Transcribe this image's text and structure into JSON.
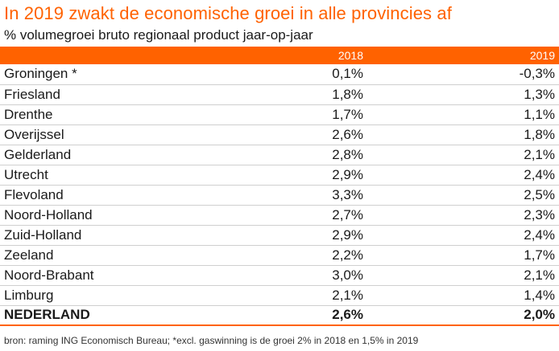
{
  "chart_data": {
    "type": "table",
    "title": "In 2019 zwakt de economische groei in alle provincies af",
    "subtitle": "% volumegroei bruto regionaal product jaar-op-jaar",
    "columns": [
      "",
      "2018",
      "2019"
    ],
    "rows": [
      {
        "label": "Groningen *",
        "v2018": "0,1%",
        "v2019": "-0,3%"
      },
      {
        "label": "Friesland",
        "v2018": "1,8%",
        "v2019": "1,3%"
      },
      {
        "label": "Drenthe",
        "v2018": "1,7%",
        "v2019": "1,1%"
      },
      {
        "label": "Overijssel",
        "v2018": "2,6%",
        "v2019": "1,8%"
      },
      {
        "label": "Gelderland",
        "v2018": "2,8%",
        "v2019": "2,1%"
      },
      {
        "label": "Utrecht",
        "v2018": "2,9%",
        "v2019": "2,4%"
      },
      {
        "label": "Flevoland",
        "v2018": "3,3%",
        "v2019": "2,5%"
      },
      {
        "label": "Noord-Holland",
        "v2018": "2,7%",
        "v2019": "2,3%"
      },
      {
        "label": "Zuid-Holland",
        "v2018": "2,9%",
        "v2019": "2,4%"
      },
      {
        "label": "Zeeland",
        "v2018": "2,2%",
        "v2019": "1,7%"
      },
      {
        "label": "Noord-Brabant",
        "v2018": "3,0%",
        "v2019": "2,1%"
      },
      {
        "label": "Limburg",
        "v2018": "2,1%",
        "v2019": "1,4%"
      }
    ],
    "total": {
      "label": "NEDERLAND",
      "v2018": "2,6%",
      "v2019": "2,0%"
    },
    "source": "bron: raming ING Economisch Bureau; *excl. gaswinning is de groei 2% in 2018 en 1,5% in 2019",
    "colors": {
      "accent": "#ff6200",
      "text": "#1a1a1a",
      "divider": "#cfcfcf"
    }
  }
}
